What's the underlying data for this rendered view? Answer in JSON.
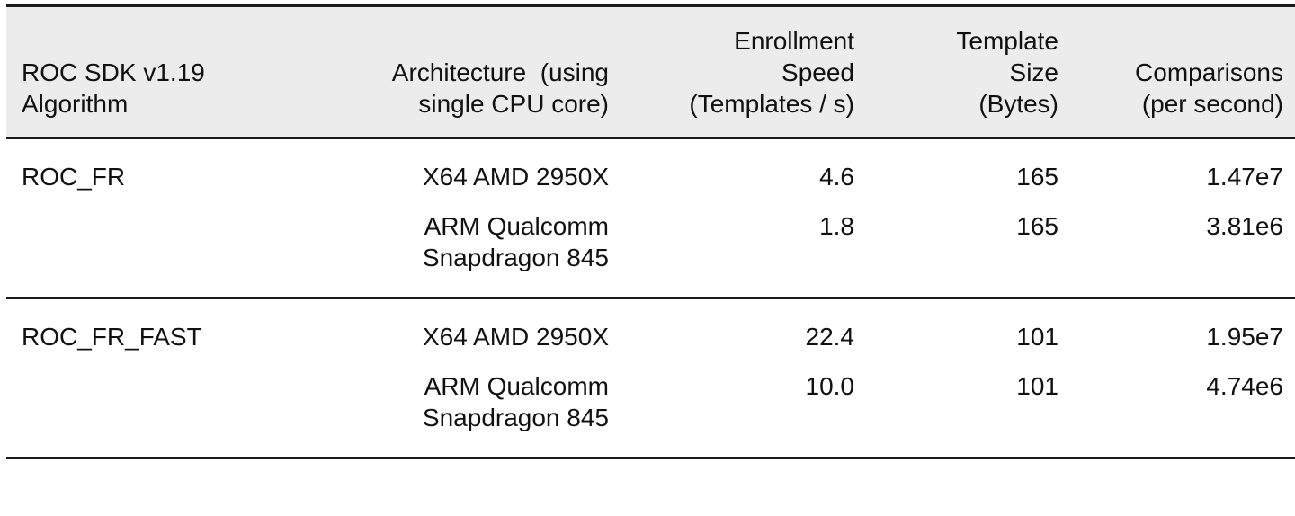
{
  "table": {
    "headers": [
      {
        "lines": [
          "ROC SDK v1.19",
          "Algorithm"
        ]
      },
      {
        "lines": [
          "Architecture  (using",
          "single CPU core)"
        ]
      },
      {
        "lines": [
          "Enrollment",
          "Speed",
          "(Templates / s)"
        ]
      },
      {
        "lines": [
          "Template",
          "Size",
          "(Bytes)"
        ]
      },
      {
        "lines": [
          "Comparisons",
          "(per second)"
        ]
      }
    ],
    "groups": [
      {
        "algorithm": "ROC_FR",
        "rows": [
          {
            "architecture": [
              "X64 AMD 2950X"
            ],
            "enrollment_speed": "4.6",
            "template_size": "165",
            "comparisons": "1.47e7"
          },
          {
            "architecture": [
              "ARM Qualcomm",
              "Snapdragon 845"
            ],
            "enrollment_speed": "1.8",
            "template_size": "165",
            "comparisons": "3.81e6"
          }
        ]
      },
      {
        "algorithm": "ROC_FR_FAST",
        "rows": [
          {
            "architecture": [
              "X64 AMD 2950X"
            ],
            "enrollment_speed": "22.4",
            "template_size": "101",
            "comparisons": "1.95e7"
          },
          {
            "architecture": [
              "ARM Qualcomm",
              "Snapdragon 845"
            ],
            "enrollment_speed": "10.0",
            "template_size": "101",
            "comparisons": "4.74e6"
          }
        ]
      }
    ]
  },
  "colors": {
    "header_background": "#ececec",
    "rule": "#1a1a1a",
    "text": "#111111"
  }
}
